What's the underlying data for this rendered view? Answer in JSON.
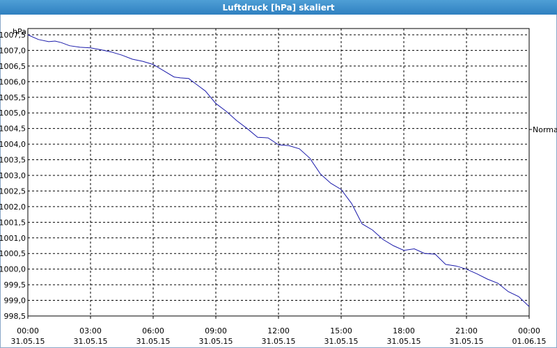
{
  "window": {
    "title": "Luftdruck [hPa] skaliert"
  },
  "chart_data": {
    "type": "line",
    "title": "Luftdruck [hPa] skaliert",
    "ylabel": "hPa",
    "xlabel": "",
    "ylim": [
      998.5,
      1007.7
    ],
    "xlim": [
      0,
      24
    ],
    "grid": true,
    "legend": "right",
    "yticks": [
      "998,5",
      "999,0",
      "999,5",
      "1000,0",
      "1000,5",
      "1001,0",
      "1001,5",
      "1002,0",
      "1002,5",
      "1003,0",
      "1003,5",
      "1004,0",
      "1004,5",
      "1005,0",
      "1005,5",
      "1006,0",
      "1006,5",
      "1007,0",
      "1007,5"
    ],
    "ytick_values": [
      998.5,
      999.0,
      999.5,
      1000.0,
      1000.5,
      1001.0,
      1001.5,
      1002.0,
      1002.5,
      1003.0,
      1003.5,
      1004.0,
      1004.5,
      1005.0,
      1005.5,
      1006.0,
      1006.5,
      1007.0,
      1007.5
    ],
    "xticks": [
      {
        "time": "00:00",
        "date": "31.05.15"
      },
      {
        "time": "03:00",
        "date": "31.05.15"
      },
      {
        "time": "06:00",
        "date": "31.05.15"
      },
      {
        "time": "09:00",
        "date": "31.05.15"
      },
      {
        "time": "12:00",
        "date": "31.05.15"
      },
      {
        "time": "15:00",
        "date": "31.05.15"
      },
      {
        "time": "18:00",
        "date": "31.05.15"
      },
      {
        "time": "21:00",
        "date": "31.05.15"
      },
      {
        "time": "00:00",
        "date": "01.06.15"
      }
    ],
    "series": [
      {
        "name": "Normal",
        "color": "#1a1aaa",
        "x": [
          0,
          0.5,
          1.0,
          1.3,
          1.6,
          2.0,
          2.5,
          3.0,
          3.5,
          4.0,
          4.5,
          5.0,
          5.5,
          6.0,
          6.5,
          7.0,
          7.3,
          7.7,
          8.0,
          8.5,
          9.0,
          9.5,
          10.0,
          10.5,
          11.0,
          11.5,
          12.0,
          12.5,
          13.0,
          13.5,
          14.0,
          14.5,
          15.0,
          15.5,
          16.0,
          16.5,
          17.0,
          17.5,
          18.0,
          18.5,
          19.0,
          19.5,
          20.0,
          20.5,
          21.0,
          21.5,
          22.0,
          22.5,
          23.0,
          23.5,
          24.0
        ],
        "y": [
          1007.5,
          1007.35,
          1007.28,
          1007.3,
          1007.25,
          1007.15,
          1007.1,
          1007.08,
          1007.02,
          1006.95,
          1006.85,
          1006.72,
          1006.65,
          1006.55,
          1006.35,
          1006.15,
          1006.12,
          1006.1,
          1005.95,
          1005.7,
          1005.3,
          1005.05,
          1004.75,
          1004.5,
          1004.22,
          1004.2,
          1003.98,
          1003.95,
          1003.85,
          1003.55,
          1003.05,
          1002.75,
          1002.55,
          1002.1,
          1001.45,
          1001.25,
          1000.95,
          1000.75,
          1000.6,
          1000.65,
          1000.5,
          1000.48,
          1000.15,
          1000.1,
          1000.0,
          999.85,
          999.68,
          999.55,
          999.28,
          999.12,
          998.8
        ]
      }
    ]
  }
}
